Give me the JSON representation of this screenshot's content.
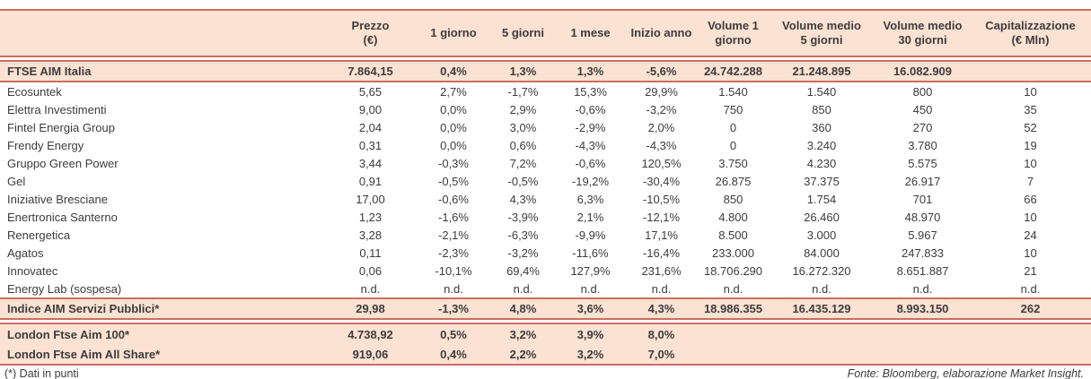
{
  "table": {
    "header": {
      "columns": [
        {
          "key": "prezzo",
          "lines": [
            "Prezzo",
            "(€)"
          ]
        },
        {
          "key": "1-giorno",
          "lines": [
            "1 giorno"
          ]
        },
        {
          "key": "5-giorni",
          "lines": [
            "5 giorni"
          ]
        },
        {
          "key": "1-mese",
          "lines": [
            "1 mese"
          ]
        },
        {
          "key": "inizio-anno",
          "lines": [
            "Inizio anno"
          ]
        },
        {
          "key": "volume-1-giorno",
          "lines": [
            "Volume 1",
            "giorno"
          ]
        },
        {
          "key": "volume-medio-5-giorni",
          "lines": [
            "Volume medio",
            "5 giorni"
          ]
        },
        {
          "key": "volume-medio-30-giorni",
          "lines": [
            "Volume medio",
            "30 giorni"
          ]
        },
        {
          "key": "capitalizzazione",
          "lines": [
            "Capitalizzazione",
            "(€ Mln)"
          ]
        }
      ]
    },
    "sections": {
      "ftse": [
        {
          "name": "FTSE AIM Italia",
          "cells": [
            "7.864,15",
            "0,4%",
            "1,3%",
            "1,3%",
            "-5,6%",
            "24.742.288",
            "21.248.895",
            "16.082.909",
            ""
          ]
        }
      ],
      "companies": [
        {
          "name": "Ecosuntek",
          "cells": [
            "5,65",
            "2,7%",
            "-1,7%",
            "15,3%",
            "29,9%",
            "1.540",
            "1.540",
            "800",
            "10"
          ]
        },
        {
          "name": "Elettra Investimenti",
          "cells": [
            "9,00",
            "0,0%",
            "2,9%",
            "-0,6%",
            "-3,2%",
            "750",
            "850",
            "450",
            "35"
          ]
        },
        {
          "name": "Fintel Energia Group",
          "cells": [
            "2,04",
            "0,0%",
            "3,0%",
            "-2,9%",
            "2,0%",
            "0",
            "360",
            "270",
            "52"
          ]
        },
        {
          "name": "Frendy Energy",
          "cells": [
            "0,31",
            "0,0%",
            "0,6%",
            "-4,3%",
            "-4,3%",
            "0",
            "3.240",
            "3.780",
            "19"
          ]
        },
        {
          "name": "Gruppo Green Power",
          "cells": [
            "3,44",
            "-0,3%",
            "7,2%",
            "-0,6%",
            "120,5%",
            "3.750",
            "4.230",
            "5.575",
            "10"
          ]
        },
        {
          "name": "Gel",
          "cells": [
            "0,91",
            "-0,5%",
            "-0,5%",
            "-19,2%",
            "-30,4%",
            "26.875",
            "37.375",
            "26.917",
            "7"
          ]
        },
        {
          "name": "Iniziative Bresciane",
          "cells": [
            "17,00",
            "-0,6%",
            "4,3%",
            "6,3%",
            "-10,5%",
            "850",
            "1.754",
            "701",
            "66"
          ]
        },
        {
          "name": "Enertronica Santerno",
          "cells": [
            "1,23",
            "-1,6%",
            "-3,9%",
            "2,1%",
            "-12,1%",
            "4.800",
            "26.460",
            "48.970",
            "10"
          ]
        },
        {
          "name": "Renergetica",
          "cells": [
            "3,28",
            "-2,1%",
            "-6,3%",
            "-9,9%",
            "17,1%",
            "8.500",
            "3.000",
            "5.967",
            "24"
          ]
        },
        {
          "name": "Agatos",
          "cells": [
            "0,11",
            "-2,3%",
            "-3,2%",
            "-11,6%",
            "-16,4%",
            "233.000",
            "84.000",
            "247.833",
            "10"
          ]
        },
        {
          "name": "Innovatec",
          "cells": [
            "0,06",
            "-10,1%",
            "69,4%",
            "127,9%",
            "231,6%",
            "18.706.290",
            "16.272.320",
            "8.651.887",
            "21"
          ]
        },
        {
          "name": "Energy Lab (sospesa)",
          "cells": [
            "n.d.",
            "n.d.",
            "n.d.",
            "n.d.",
            "n.d.",
            "n.d.",
            "n.d.",
            "n.d.",
            "n.d."
          ]
        }
      ],
      "indice": [
        {
          "name": "Indice AIM Servizi Pubblici*",
          "cells": [
            "29,98",
            "-1,3%",
            "4,8%",
            "3,6%",
            "4,3%",
            "18.986.355",
            "16.435.129",
            "8.993.150",
            "262"
          ]
        }
      ],
      "london": [
        {
          "name": "London Ftse Aim 100*",
          "cells": [
            "4.738,92",
            "0,5%",
            "3,2%",
            "3,9%",
            "8,0%",
            "",
            "",
            "",
            ""
          ]
        },
        {
          "name": "London Ftse Aim All Share*",
          "cells": [
            "919,06",
            "0,4%",
            "2,2%",
            "3,2%",
            "7,0%",
            "",
            "",
            "",
            ""
          ]
        }
      ]
    }
  },
  "footer": {
    "left": "(*) Dati in punti",
    "right": "Fonte: Bloomberg, elaborazione Market Insight."
  },
  "colors": {
    "band_background": "#fbe2d3",
    "border": "#c96f5e",
    "text": "#3c3c3c"
  }
}
